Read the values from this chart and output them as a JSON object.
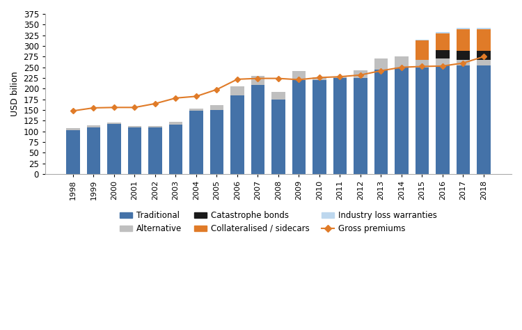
{
  "years": [
    1998,
    1999,
    2000,
    2001,
    2002,
    2003,
    2004,
    2005,
    2006,
    2007,
    2008,
    2009,
    2010,
    2011,
    2012,
    2013,
    2014,
    2015,
    2016,
    2017,
    2018
  ],
  "traditional": [
    103,
    110,
    117,
    110,
    110,
    115,
    148,
    150,
    185,
    208,
    175,
    220,
    220,
    225,
    225,
    245,
    250,
    250,
    255,
    255,
    255
  ],
  "alternative": [
    4,
    4,
    3,
    2,
    3,
    8,
    5,
    12,
    20,
    22,
    17,
    22,
    6,
    4,
    18,
    25,
    25,
    18,
    15,
    12,
    12
  ],
  "catastrophe_bonds": [
    0,
    0,
    0,
    0,
    0,
    0,
    0,
    0,
    0,
    0,
    0,
    0,
    0,
    0,
    0,
    0,
    0,
    0,
    20,
    22,
    22
  ],
  "collateralised_sidecars": [
    0,
    0,
    0,
    0,
    0,
    0,
    0,
    0,
    0,
    0,
    0,
    0,
    0,
    0,
    0,
    0,
    0,
    45,
    40,
    50,
    50
  ],
  "industry_loss_warranties": [
    0,
    0,
    0,
    0,
    0,
    0,
    0,
    0,
    0,
    0,
    0,
    0,
    0,
    0,
    0,
    0,
    0,
    2,
    3,
    4,
    4
  ],
  "gross_premiums": [
    148,
    155,
    156,
    156,
    165,
    178,
    182,
    198,
    222,
    224,
    224,
    221,
    226,
    228,
    232,
    242,
    250,
    252,
    253,
    260,
    275
  ],
  "traditional_color": "#4472a8",
  "alternative_color": "#bfbfbf",
  "catastrophe_bonds_color": "#1a1a1a",
  "collateralised_color": "#e07b28",
  "ilw_color": "#bdd7ee",
  "line_color": "#e07b28",
  "ylabel": "USD bilion",
  "ylim": [
    0,
    375
  ],
  "yticks": [
    0,
    25,
    50,
    75,
    100,
    125,
    150,
    175,
    200,
    225,
    250,
    275,
    300,
    325,
    350,
    375
  ]
}
